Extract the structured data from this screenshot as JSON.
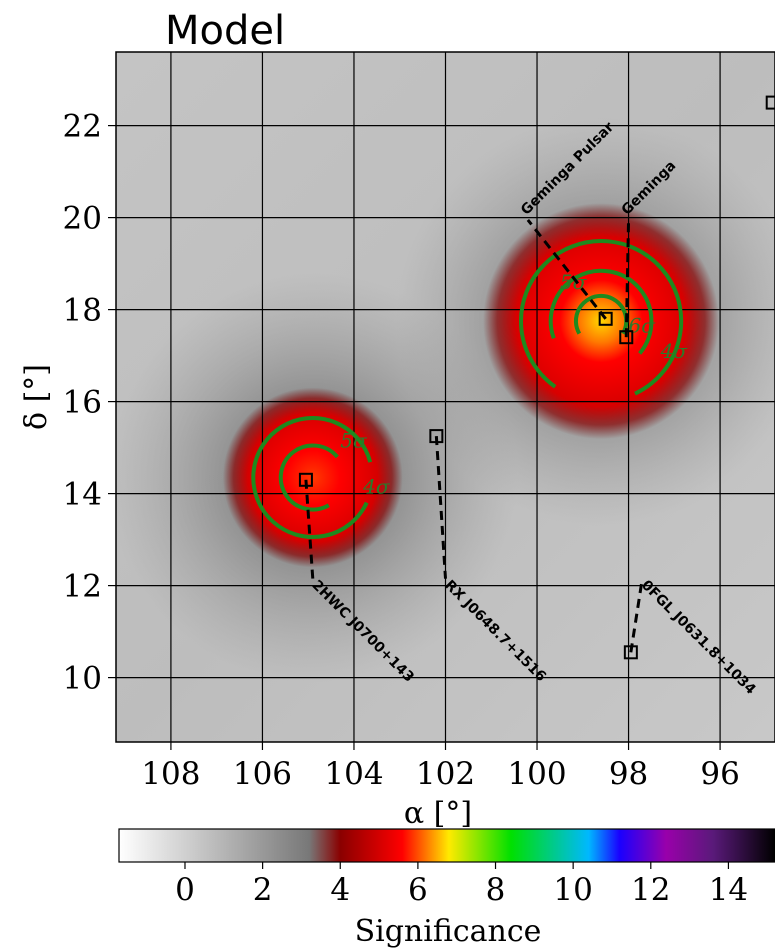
{
  "chart_data": {
    "type": "heatmap",
    "title": "Model",
    "xlabel": "α [°]",
    "ylabel": "δ [°]",
    "xlim": [
      109.2,
      94.8
    ],
    "ylim": [
      8.6,
      23.6
    ],
    "x_ticks": [
      108,
      106,
      104,
      102,
      100,
      98,
      96
    ],
    "y_ticks": [
      10,
      12,
      14,
      16,
      18,
      20,
      22
    ],
    "grid": true,
    "colorbar": {
      "label": "Significance",
      "range": [
        -1.7,
        15.2
      ],
      "ticks": [
        0,
        2,
        4,
        6,
        8,
        10,
        12,
        14
      ],
      "stops": [
        {
          "v": -1.7,
          "color": "#ffffff"
        },
        {
          "v": 3.2,
          "color": "#787878"
        },
        {
          "v": 4.0,
          "color": "#8a0000"
        },
        {
          "v": 5.6,
          "color": "#ff0000"
        },
        {
          "v": 6.8,
          "color": "#ffea00"
        },
        {
          "v": 8.4,
          "color": "#00e000"
        },
        {
          "v": 10.4,
          "color": "#00b8ff"
        },
        {
          "v": 11.2,
          "color": "#1a00ff"
        },
        {
          "v": 12.4,
          "color": "#9900aa"
        },
        {
          "v": 13.6,
          "color": "#5a1a7a"
        },
        {
          "v": 15.2,
          "color": "#000000"
        }
      ]
    },
    "blobs": [
      {
        "ra": 98.6,
        "dec": 17.75,
        "peak": 7.5
      },
      {
        "ra": 104.9,
        "dec": 14.35,
        "peak": 6.5
      }
    ],
    "contours": [
      {
        "level": "4σ",
        "center": [
          98.6,
          17.75
        ],
        "radius_deg": 1.75,
        "start_angle": -65,
        "end_angle": 235,
        "label_ra": 97.3,
        "label_dec": 16.95
      },
      {
        "level": "5σ",
        "center": [
          98.6,
          17.75
        ],
        "radius_deg": 1.1,
        "start_angle": -40,
        "end_angle": 200,
        "label_ra": 99.5,
        "label_dec": 18.45
      },
      {
        "level": "6σ",
        "center": [
          98.6,
          17.75
        ],
        "radius_deg": 0.55,
        "start_angle": -30,
        "end_angle": 210,
        "label_ra": 98.0,
        "label_dec": 17.5
      },
      {
        "level": "4σ",
        "center": [
          104.9,
          14.35
        ],
        "radius_deg": 1.3,
        "start_angle": 15,
        "end_angle": 335,
        "label_ra": 103.8,
        "label_dec": 14.0
      },
      {
        "level": "5σ",
        "center": [
          104.9,
          14.35
        ],
        "radius_deg": 0.7,
        "start_angle": 40,
        "end_angle": 300,
        "label_ra": 104.3,
        "label_dec": 15.0
      }
    ],
    "sources": [
      {
        "name": "Geminga Pulsar",
        "ra": 98.5,
        "dec": 17.8,
        "label_ra": 100.2,
        "label_dec": 19.95,
        "angle": -45
      },
      {
        "name": "Geminga",
        "ra": 98.05,
        "dec": 17.4,
        "label_ra": 98.0,
        "label_dec": 19.95,
        "angle": -45
      },
      {
        "name": "RX J0648.7+1516",
        "ra": 102.2,
        "dec": 15.25,
        "label_ra": 102.0,
        "label_dec": 12.15,
        "angle": 45
      },
      {
        "name": "2HWC J0700+143",
        "ra": 105.05,
        "dec": 14.3,
        "label_ra": 104.9,
        "label_dec": 12.15,
        "angle": 45
      },
      {
        "name": "0FGL J0631.8+1034",
        "ra": 97.95,
        "dec": 10.55,
        "label_ra": 97.7,
        "label_dec": 12.15,
        "angle": 45
      },
      {
        "name": "",
        "ra": 94.85,
        "dec": 22.5,
        "label_ra": null,
        "label_dec": null,
        "angle": 0
      }
    ]
  }
}
